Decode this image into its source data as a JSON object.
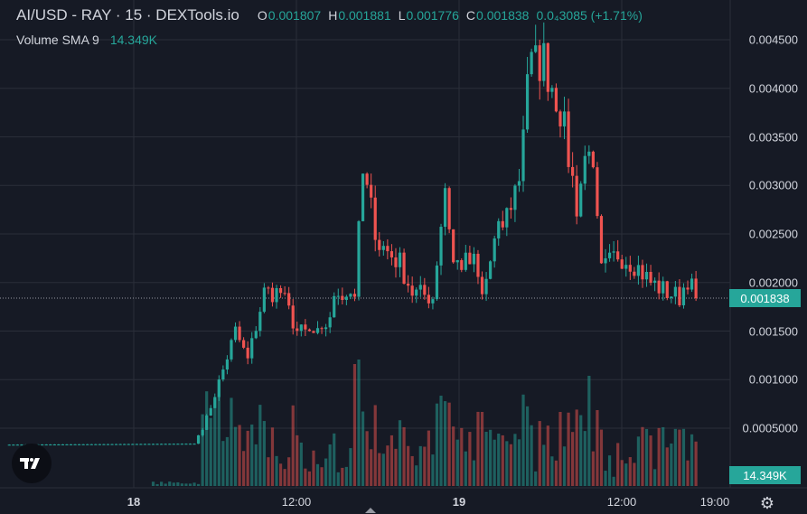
{
  "header": {
    "symbol": "AI/USD - RAY · 15 · DEXTools.io",
    "open_label": "O",
    "open": "0.001807",
    "high_label": "H",
    "high": "0.001881",
    "low_label": "L",
    "low": "0.001776",
    "close_label": "C",
    "close": "0.001838",
    "change": "0.0₄3085 (+1.71%)"
  },
  "volume_indicator": {
    "label": "Volume SMA 9",
    "value": "14.349K"
  },
  "price_axis": {
    "ticks": [
      "0.004500",
      "0.004000",
      "0.003500",
      "0.003000",
      "0.002500",
      "0.002000",
      "0.001500",
      "0.001000",
      "0.0005000"
    ],
    "current_price": "0.001838",
    "volume_tag": "14.349K"
  },
  "time_axis": {
    "ticks": [
      "18",
      "12:00",
      "19",
      "12:00",
      "19:00"
    ]
  },
  "colors": {
    "background": "#161a25",
    "up": "#26a69a",
    "down": "#ef5350",
    "grid": "#2a2e39"
  },
  "icons": {
    "logo": "tradingview-logo-icon",
    "settings": "gear-icon"
  },
  "chart_data": {
    "type": "candlestick",
    "interval": "15",
    "ylim": [
      0,
      0.0047
    ],
    "last_price": 0.001838,
    "anchors": [
      {
        "t": 0,
        "p": 0.00033
      },
      {
        "t": 45,
        "p": 0.00034
      },
      {
        "t": 48,
        "p": 0.0006
      },
      {
        "t": 52,
        "p": 0.0011
      },
      {
        "t": 55,
        "p": 0.0015
      },
      {
        "t": 58,
        "p": 0.0012
      },
      {
        "t": 62,
        "p": 0.0019
      },
      {
        "t": 66,
        "p": 0.0019
      },
      {
        "t": 70,
        "p": 0.0015
      },
      {
        "t": 76,
        "p": 0.00145
      },
      {
        "t": 80,
        "p": 0.0019
      },
      {
        "t": 84,
        "p": 0.0019
      },
      {
        "t": 86,
        "p": 0.0031
      },
      {
        "t": 90,
        "p": 0.0024
      },
      {
        "t": 95,
        "p": 0.0022
      },
      {
        "t": 98,
        "p": 0.0019
      },
      {
        "t": 103,
        "p": 0.00185
      },
      {
        "t": 106,
        "p": 0.003
      },
      {
        "t": 108,
        "p": 0.0022
      },
      {
        "t": 113,
        "p": 0.0022
      },
      {
        "t": 115,
        "p": 0.00185
      },
      {
        "t": 118,
        "p": 0.0024
      },
      {
        "t": 121,
        "p": 0.0027
      },
      {
        "t": 124,
        "p": 0.0031
      },
      {
        "t": 126,
        "p": 0.0042
      },
      {
        "t": 130,
        "p": 0.0043
      },
      {
        "t": 134,
        "p": 0.0038
      },
      {
        "t": 138,
        "p": 0.0028
      },
      {
        "t": 141,
        "p": 0.0035
      },
      {
        "t": 144,
        "p": 0.0021
      },
      {
        "t": 148,
        "p": 0.0023
      },
      {
        "t": 152,
        "p": 0.0022
      },
      {
        "t": 156,
        "p": 0.002
      },
      {
        "t": 160,
        "p": 0.0019
      },
      {
        "t": 163,
        "p": 0.00185
      },
      {
        "t": 165,
        "p": 0.00205
      },
      {
        "t": 167,
        "p": 0.001838
      }
    ]
  }
}
